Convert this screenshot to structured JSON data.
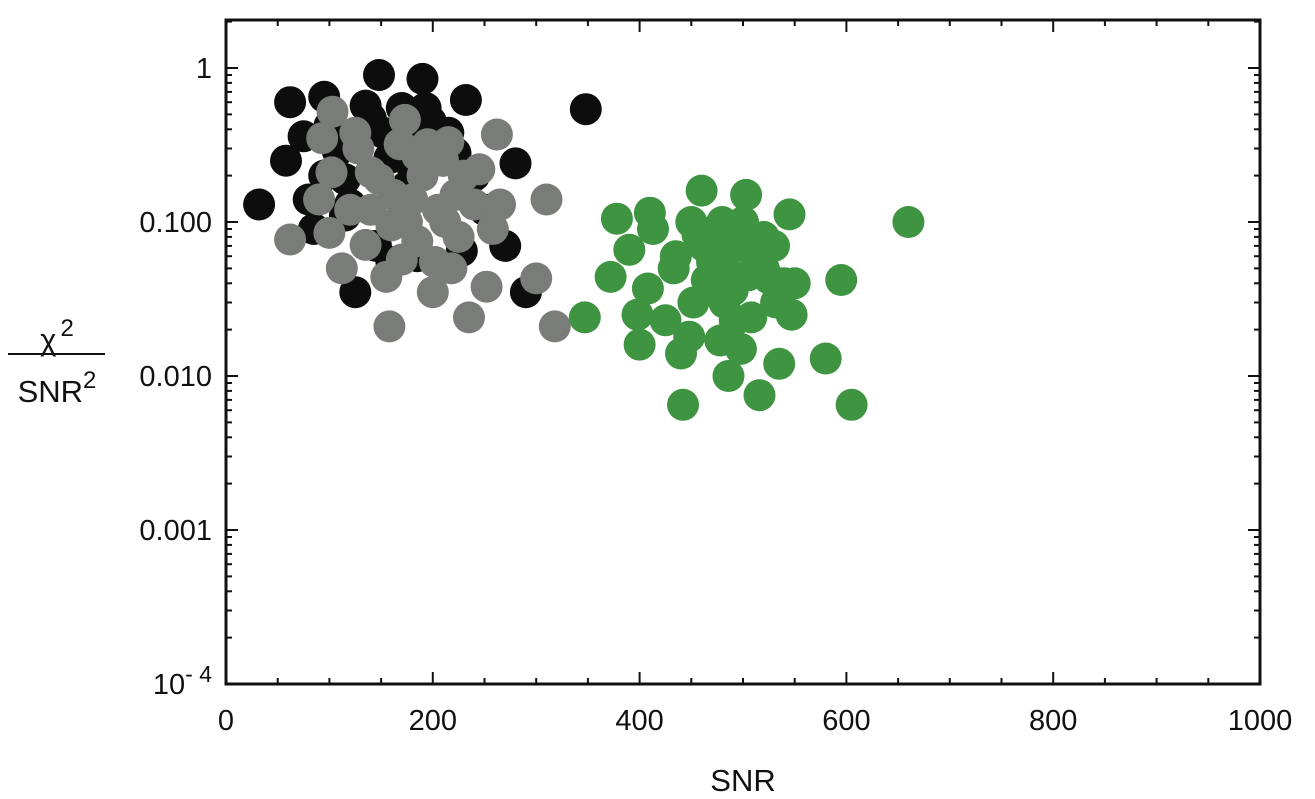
{
  "chart_data": {
    "type": "scatter",
    "title": "",
    "xlabel": "SNR",
    "ylabel": {
      "numerator": "χ",
      "numerator_sup": "2",
      "denominator": "SNR",
      "denominator_sup": "2"
    },
    "xlim": [
      0,
      1000
    ],
    "ylim": [
      0.0001,
      2
    ],
    "y_scale": "log",
    "grid": false,
    "legend": "none",
    "x_ticks": [
      "0",
      "200",
      "400",
      "600",
      "800",
      "1000"
    ],
    "y_ticks": [
      {
        "value": 1,
        "label": "1",
        "sup": ""
      },
      {
        "value": 0.1,
        "label": "0.100",
        "sup": ""
      },
      {
        "value": 0.01,
        "label": "0.010",
        "sup": ""
      },
      {
        "value": 0.001,
        "label": "0.001",
        "sup": ""
      },
      {
        "value": 0.0001,
        "label": "10",
        "sup": "- 4"
      }
    ],
    "series": [
      {
        "color": "#0d0d0d",
        "points": [
          [
            32,
            0.13
          ],
          [
            62,
            0.6
          ],
          [
            58,
            0.25
          ],
          [
            75,
            0.36
          ],
          [
            80,
            0.14
          ],
          [
            85,
            0.09
          ],
          [
            95,
            0.65
          ],
          [
            100,
            0.42
          ],
          [
            108,
            0.29
          ],
          [
            115,
            0.19
          ],
          [
            125,
            0.035
          ],
          [
            135,
            0.57
          ],
          [
            140,
            0.47
          ],
          [
            148,
            0.9
          ],
          [
            152,
            0.38
          ],
          [
            158,
            0.26
          ],
          [
            165,
            0.3
          ],
          [
            170,
            0.55
          ],
          [
            175,
            0.42
          ],
          [
            180,
            0.23
          ],
          [
            190,
            0.85
          ],
          [
            193,
            0.55
          ],
          [
            198,
            0.45
          ],
          [
            205,
            0.38
          ],
          [
            210,
            0.25
          ],
          [
            215,
            0.38
          ],
          [
            222,
            0.28
          ],
          [
            228,
            0.065
          ],
          [
            232,
            0.62
          ],
          [
            240,
            0.2
          ],
          [
            250,
            0.12
          ],
          [
            270,
            0.07
          ],
          [
            280,
            0.24
          ],
          [
            290,
            0.035
          ],
          [
            348,
            0.54
          ],
          [
            115,
            0.11
          ],
          [
            145,
            0.07
          ],
          [
            185,
            0.06
          ],
          [
            160,
            0.055
          ],
          [
            120,
            0.13
          ],
          [
            95,
            0.2
          ],
          [
            175,
            0.17
          ]
        ]
      },
      {
        "color": "#7a7c7a",
        "points": [
          [
            62,
            0.077
          ],
          [
            90,
            0.14
          ],
          [
            93,
            0.35
          ],
          [
            100,
            0.085
          ],
          [
            102,
            0.21
          ],
          [
            103,
            0.52
          ],
          [
            112,
            0.05
          ],
          [
            120,
            0.12
          ],
          [
            125,
            0.38
          ],
          [
            128,
            0.3
          ],
          [
            135,
            0.071
          ],
          [
            140,
            0.12
          ],
          [
            148,
            0.19
          ],
          [
            155,
            0.044
          ],
          [
            158,
            0.021
          ],
          [
            162,
            0.15
          ],
          [
            168,
            0.32
          ],
          [
            170,
            0.057
          ],
          [
            173,
            0.46
          ],
          [
            175,
            0.1
          ],
          [
            180,
            0.14
          ],
          [
            185,
            0.27
          ],
          [
            190,
            0.2
          ],
          [
            195,
            0.32
          ],
          [
            200,
            0.035
          ],
          [
            202,
            0.055
          ],
          [
            205,
            0.12
          ],
          [
            210,
            0.25
          ],
          [
            212,
            0.1
          ],
          [
            215,
            0.33
          ],
          [
            218,
            0.05
          ],
          [
            222,
            0.15
          ],
          [
            225,
            0.08
          ],
          [
            230,
            0.2
          ],
          [
            235,
            0.024
          ],
          [
            240,
            0.13
          ],
          [
            245,
            0.22
          ],
          [
            252,
            0.038
          ],
          [
            258,
            0.09
          ],
          [
            262,
            0.37
          ],
          [
            265,
            0.13
          ],
          [
            300,
            0.043
          ],
          [
            310,
            0.14
          ],
          [
            318,
            0.021
          ],
          [
            160,
            0.095
          ],
          [
            185,
            0.075
          ],
          [
            140,
            0.21
          ]
        ]
      },
      {
        "color": "#3e9441",
        "points": [
          [
            347,
            0.024
          ],
          [
            372,
            0.044
          ],
          [
            378,
            0.105
          ],
          [
            390,
            0.066
          ],
          [
            398,
            0.025
          ],
          [
            400,
            0.016
          ],
          [
            408,
            0.037
          ],
          [
            410,
            0.115
          ],
          [
            413,
            0.09
          ],
          [
            425,
            0.023
          ],
          [
            433,
            0.05
          ],
          [
            435,
            0.06
          ],
          [
            440,
            0.014
          ],
          [
            442,
            0.0065
          ],
          [
            448,
            0.018
          ],
          [
            450,
            0.1
          ],
          [
            452,
            0.03
          ],
          [
            460,
            0.16
          ],
          [
            462,
            0.07
          ],
          [
            465,
            0.042
          ],
          [
            468,
            0.038
          ],
          [
            470,
            0.055
          ],
          [
            472,
            0.08
          ],
          [
            475,
            0.09
          ],
          [
            478,
            0.017
          ],
          [
            480,
            0.1
          ],
          [
            482,
            0.03
          ],
          [
            484,
            0.064
          ],
          [
            486,
            0.01
          ],
          [
            488,
            0.045
          ],
          [
            490,
            0.036
          ],
          [
            492,
            0.023
          ],
          [
            495,
            0.07
          ],
          [
            498,
            0.015
          ],
          [
            500,
            0.1
          ],
          [
            503,
            0.15
          ],
          [
            505,
            0.045
          ],
          [
            508,
            0.024
          ],
          [
            512,
            0.06
          ],
          [
            516,
            0.0075
          ],
          [
            520,
            0.05
          ],
          [
            525,
            0.043
          ],
          [
            530,
            0.07
          ],
          [
            532,
            0.03
          ],
          [
            535,
            0.012
          ],
          [
            540,
            0.04
          ],
          [
            545,
            0.112
          ],
          [
            547,
            0.025
          ],
          [
            550,
            0.04
          ],
          [
            580,
            0.013
          ],
          [
            595,
            0.042
          ],
          [
            605,
            0.0065
          ],
          [
            660,
            0.1
          ],
          [
            456,
            0.083
          ],
          [
            520,
            0.08
          ]
        ]
      }
    ]
  }
}
